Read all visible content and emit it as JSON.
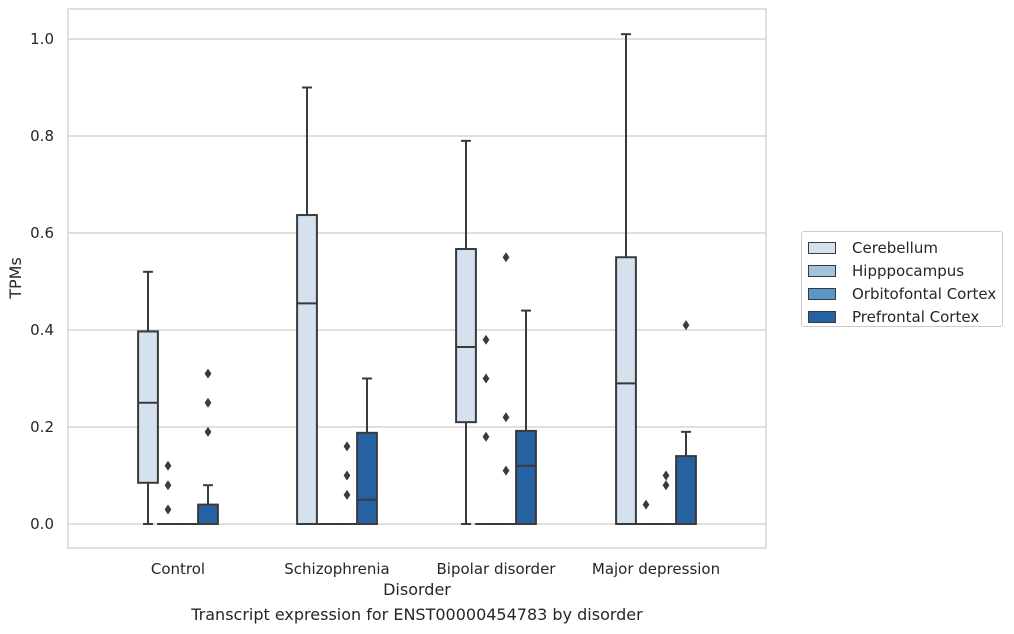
{
  "caption": "Transcript expression for ENST00000454783 by disorder",
  "colors": {
    "Cerebellum": "#d4e2f0",
    "Hipppocampus": "#a0c4dd",
    "Orbitofontal Cortex": "#5a97c4",
    "Prefrontal Cortex": "#2462a4",
    "box_edge": "#3a3a3a",
    "grid": "#cccccc"
  },
  "chart_data": {
    "type": "box",
    "xlabel": "Disorder",
    "ylabel": "TPMs",
    "ylim": [
      -0.05,
      1.06
    ],
    "yticks": [
      "0.0",
      "0.2",
      "0.4",
      "0.6",
      "0.8",
      "1.0"
    ],
    "grid": true,
    "legend_position": "right",
    "categories": [
      "Control",
      "Schizophrenia",
      "Bipolar disorder",
      "Major depression"
    ],
    "series": [
      {
        "name": "Cerebellum",
        "boxes": [
          {
            "whisker_low": 0,
            "q1": 0.085,
            "median": 0.25,
            "q3": 0.397,
            "whisker_high": 0.52,
            "outliers": []
          },
          {
            "whisker_low": 0,
            "q1": 0,
            "median": 0.455,
            "q3": 0.637,
            "whisker_high": 0.9,
            "outliers": []
          },
          {
            "whisker_low": 0,
            "q1": 0.21,
            "median": 0.365,
            "q3": 0.567,
            "whisker_high": 0.79,
            "outliers": []
          },
          {
            "whisker_low": 0,
            "q1": 0,
            "median": 0.29,
            "q3": 0.55,
            "whisker_high": 1.01,
            "outliers": []
          }
        ]
      },
      {
        "name": "Hipppocampus",
        "boxes": [
          {
            "whisker_low": 0,
            "q1": 0,
            "median": 0,
            "q3": 0,
            "whisker_high": 0,
            "outliers": [
              0.12,
              0.08,
              0.03
            ]
          },
          {
            "whisker_low": 0,
            "q1": 0,
            "median": 0,
            "q3": 0,
            "whisker_high": 0,
            "outliers": []
          },
          {
            "whisker_low": 0,
            "q1": 0,
            "median": 0,
            "q3": 0,
            "whisker_high": 0,
            "outliers": [
              0.38,
              0.3,
              0.18
            ]
          },
          {
            "whisker_low": 0,
            "q1": 0,
            "median": 0,
            "q3": 0,
            "whisker_high": 0,
            "outliers": [
              0.04
            ]
          }
        ]
      },
      {
        "name": "Orbitofontal Cortex",
        "boxes": [
          {
            "whisker_low": 0,
            "q1": 0,
            "median": 0,
            "q3": 0,
            "whisker_high": 0,
            "outliers": []
          },
          {
            "whisker_low": 0,
            "q1": 0,
            "median": 0,
            "q3": 0,
            "whisker_high": 0,
            "outliers": [
              0.16,
              0.1,
              0.06
            ]
          },
          {
            "whisker_low": 0,
            "q1": 0,
            "median": 0,
            "q3": 0,
            "whisker_high": 0,
            "outliers": [
              0.55,
              0.22,
              0.11
            ]
          },
          {
            "whisker_low": 0,
            "q1": 0,
            "median": 0,
            "q3": 0,
            "whisker_high": 0,
            "outliers": [
              0.1,
              0.08
            ]
          }
        ]
      },
      {
        "name": "Prefrontal Cortex",
        "boxes": [
          {
            "whisker_low": 0,
            "q1": 0,
            "median": 0,
            "q3": 0.04,
            "whisker_high": 0.08,
            "outliers": [
              0.31,
              0.25,
              0.19
            ]
          },
          {
            "whisker_low": 0,
            "q1": 0,
            "median": 0.05,
            "q3": 0.188,
            "whisker_high": 0.3,
            "outliers": []
          },
          {
            "whisker_low": 0,
            "q1": 0,
            "median": 0.12,
            "q3": 0.192,
            "whisker_high": 0.44,
            "outliers": []
          },
          {
            "whisker_low": 0,
            "q1": 0,
            "median": 0,
            "q3": 0.14,
            "whisker_high": 0.19,
            "outliers": [
              0.41
            ]
          }
        ]
      }
    ]
  }
}
